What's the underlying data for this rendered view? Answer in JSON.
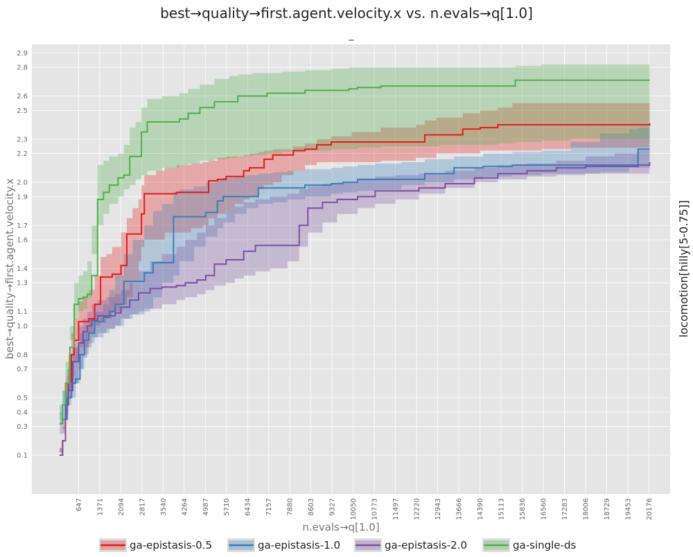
{
  "chart_data": {
    "type": "line",
    "title": "best→quality→first.agent.velocity.x vs. n.evals→q[1.0]",
    "subtitle": "_",
    "facet_label": "locomotion[hilly[5-0.75]]",
    "xlabel": "n.evals→q[1.0]",
    "ylabel": "best→quality→first.agent.velocity.x",
    "xlim": [
      -950,
      20900
    ],
    "ylim": [
      -0.17,
      2.96
    ],
    "x_ticks": [
      647,
      1371,
      2094,
      2817,
      3540,
      4264,
      4987,
      5710,
      6434,
      7157,
      7880,
      8603,
      9327,
      10050,
      10773,
      11497,
      12220,
      12943,
      13666,
      14390,
      15113,
      15836,
      16560,
      17283,
      18006,
      18729,
      19453,
      20176
    ],
    "y_ticks": [
      0.1,
      0.3,
      0.4,
      0.5,
      0.7,
      0.8,
      1.0,
      1.1,
      1.3,
      1.4,
      1.6,
      1.7,
      1.9,
      2.0,
      2.2,
      2.3,
      2.5,
      2.6,
      2.8,
      2.9
    ],
    "grid": true,
    "legend": "bottom",
    "series": [
      {
        "name": "ga-epistasis-0.5",
        "color": "#e41a1c",
        "x": [
          0,
          100,
          200,
          300,
          400,
          500,
          650,
          800,
          1000,
          1200,
          1400,
          1600,
          1800,
          2100,
          2300,
          2500,
          2700,
          2800,
          2900,
          3300,
          3600,
          4000,
          4500,
          4900,
          5100,
          5400,
          5700,
          6000,
          6300,
          6500,
          6800,
          7000,
          7300,
          7600,
          8000,
          8400,
          8800,
          9300,
          10000,
          11000,
          12200,
          12500,
          12900,
          13800,
          14400,
          15000,
          15500,
          16500,
          17500,
          18500,
          19500,
          20200
        ],
        "y": [
          0.1,
          0.2,
          0.45,
          0.6,
          0.8,
          0.9,
          1.03,
          1.03,
          1.05,
          1.15,
          1.34,
          1.34,
          1.36,
          1.42,
          1.64,
          1.64,
          1.64,
          1.78,
          1.92,
          1.92,
          1.92,
          1.93,
          1.93,
          1.93,
          2.01,
          2.02,
          2.04,
          2.04,
          2.08,
          2.1,
          2.1,
          2.16,
          2.19,
          2.19,
          2.22,
          2.23,
          2.26,
          2.28,
          2.28,
          2.28,
          2.28,
          2.33,
          2.33,
          2.37,
          2.38,
          2.4,
          2.4,
          2.4,
          2.4,
          2.4,
          2.4,
          2.41
        ],
        "y_low": [
          0.1,
          0.12,
          0.25,
          0.35,
          0.55,
          0.65,
          0.75,
          0.85,
          0.85,
          0.95,
          1.0,
          1.02,
          1.05,
          1.1,
          1.15,
          1.2,
          1.3,
          1.45,
          1.55,
          1.6,
          1.6,
          1.65,
          1.65,
          1.68,
          1.7,
          1.75,
          1.78,
          1.8,
          1.85,
          1.88,
          1.9,
          1.95,
          1.98,
          2.0,
          2.05,
          2.08,
          2.12,
          2.14,
          2.14,
          2.14,
          2.15,
          2.17,
          2.17,
          2.2,
          2.2,
          2.22,
          2.22,
          2.22,
          2.23,
          2.24,
          2.24,
          2.24
        ],
        "y_high": [
          0.15,
          0.35,
          0.65,
          0.8,
          0.95,
          1.05,
          1.17,
          1.2,
          1.25,
          1.35,
          1.48,
          1.5,
          1.55,
          1.65,
          1.75,
          1.82,
          1.88,
          1.98,
          2.05,
          2.08,
          2.1,
          2.12,
          2.13,
          2.14,
          2.15,
          2.17,
          2.18,
          2.18,
          2.19,
          2.2,
          2.21,
          2.22,
          2.23,
          2.23,
          2.25,
          2.27,
          2.3,
          2.32,
          2.35,
          2.38,
          2.4,
          2.43,
          2.45,
          2.48,
          2.5,
          2.52,
          2.55,
          2.55,
          2.55,
          2.55,
          2.55,
          2.55
        ]
      },
      {
        "name": "ga-epistasis-1.0",
        "color": "#377eb8",
        "x": [
          0,
          100,
          250,
          400,
          550,
          700,
          850,
          1000,
          1200,
          1500,
          1700,
          1900,
          2200,
          2500,
          2900,
          3200,
          3500,
          3900,
          4100,
          4600,
          5000,
          5400,
          5600,
          6000,
          6400,
          6800,
          7300,
          7800,
          8400,
          9300,
          9700,
          10200,
          10800,
          11700,
          12500,
          13500,
          14500,
          15500,
          16500,
          17500,
          18500,
          19500,
          19800,
          20200
        ],
        "y": [
          0.32,
          0.35,
          0.5,
          0.6,
          0.63,
          0.8,
          0.9,
          0.95,
          1.03,
          1.06,
          1.1,
          1.15,
          1.31,
          1.31,
          1.37,
          1.44,
          1.44,
          1.76,
          1.76,
          1.76,
          1.79,
          1.87,
          1.9,
          1.9,
          1.9,
          1.96,
          1.96,
          1.96,
          1.98,
          1.99,
          2.0,
          2.02,
          2.02,
          2.02,
          2.06,
          2.1,
          2.11,
          2.12,
          2.12,
          2.12,
          2.12,
          2.12,
          2.23,
          2.23
        ],
        "y_low": [
          0.2,
          0.25,
          0.35,
          0.45,
          0.5,
          0.6,
          0.7,
          0.8,
          0.88,
          0.92,
          0.95,
          0.98,
          1.0,
          1.05,
          1.08,
          1.12,
          1.2,
          1.3,
          1.35,
          1.45,
          1.55,
          1.62,
          1.68,
          1.72,
          1.78,
          1.82,
          1.85,
          1.86,
          1.88,
          1.9,
          1.92,
          1.93,
          1.94,
          1.95,
          1.98,
          2.0,
          2.02,
          2.04,
          2.05,
          2.06,
          2.06,
          2.07,
          2.1,
          2.1
        ],
        "y_high": [
          0.45,
          0.55,
          0.7,
          0.8,
          0.85,
          0.95,
          1.0,
          1.05,
          1.1,
          1.15,
          1.25,
          1.35,
          1.5,
          1.6,
          1.7,
          1.8,
          1.85,
          1.93,
          1.95,
          1.97,
          2.0,
          2.02,
          2.03,
          2.04,
          2.05,
          2.06,
          2.07,
          2.08,
          2.09,
          2.1,
          2.11,
          2.12,
          2.13,
          2.14,
          2.16,
          2.18,
          2.2,
          2.21,
          2.22,
          2.28,
          2.34,
          2.37,
          2.38,
          2.38
        ]
      },
      {
        "name": "ga-epistasis-2.0",
        "color": "#7b4ea3",
        "x": [
          0,
          100,
          200,
          300,
          450,
          650,
          800,
          950,
          1100,
          1300,
          1600,
          1900,
          2100,
          2400,
          2700,
          3100,
          3500,
          4000,
          4300,
          4700,
          5000,
          5300,
          5700,
          6000,
          6300,
          6700,
          7200,
          7800,
          8200,
          8500,
          9000,
          9500,
          10200,
          10800,
          11500,
          12300,
          13200,
          14200,
          15000,
          16000,
          17000,
          18000,
          19000,
          19800,
          20200
        ],
        "y": [
          0.1,
          0.2,
          0.45,
          0.55,
          0.75,
          0.88,
          0.96,
          1.0,
          1.04,
          1.07,
          1.07,
          1.09,
          1.13,
          1.18,
          1.23,
          1.26,
          1.27,
          1.28,
          1.3,
          1.32,
          1.35,
          1.43,
          1.46,
          1.46,
          1.52,
          1.56,
          1.56,
          1.56,
          1.7,
          1.82,
          1.86,
          1.88,
          1.9,
          1.94,
          1.94,
          1.96,
          1.99,
          2.03,
          2.06,
          2.08,
          2.1,
          2.11,
          2.11,
          2.12,
          2.14
        ],
        "y_low": [
          0.08,
          0.12,
          0.28,
          0.38,
          0.5,
          0.6,
          0.7,
          0.78,
          0.85,
          0.92,
          0.95,
          0.98,
          1.0,
          1.05,
          1.08,
          1.1,
          1.12,
          1.15,
          1.18,
          1.2,
          1.22,
          1.25,
          1.28,
          1.3,
          1.33,
          1.35,
          1.38,
          1.4,
          1.45,
          1.55,
          1.65,
          1.72,
          1.78,
          1.82,
          1.85,
          1.88,
          1.92,
          1.96,
          2.0,
          2.02,
          2.04,
          2.05,
          2.06,
          2.06,
          2.06
        ],
        "y_high": [
          0.15,
          0.3,
          0.6,
          0.7,
          0.85,
          1.0,
          1.05,
          1.1,
          1.15,
          1.18,
          1.2,
          1.22,
          1.25,
          1.3,
          1.38,
          1.45,
          1.5,
          1.55,
          1.6,
          1.65,
          1.7,
          1.75,
          1.8,
          1.83,
          1.86,
          1.88,
          1.9,
          1.92,
          1.95,
          1.97,
          1.99,
          2.0,
          2.02,
          2.04,
          2.05,
          2.06,
          2.08,
          2.1,
          2.12,
          2.13,
          2.15,
          2.18,
          2.2,
          2.22,
          2.22
        ]
      },
      {
        "name": "ga-single-ds",
        "color": "#4daf4a",
        "x": [
          0,
          100,
          200,
          350,
          500,
          650,
          800,
          950,
          1100,
          1300,
          1500,
          1700,
          2000,
          2200,
          2400,
          2600,
          2800,
          3000,
          3500,
          4100,
          4400,
          4800,
          5300,
          5800,
          6100,
          6600,
          7100,
          7600,
          8400,
          9300,
          9900,
          10200,
          11000,
          12000,
          13000,
          14000,
          15000,
          15600,
          16500,
          17500,
          18500,
          19500,
          20200
        ],
        "y": [
          0.32,
          0.45,
          0.6,
          0.85,
          1.15,
          1.19,
          1.2,
          1.22,
          1.35,
          1.88,
          1.93,
          1.98,
          2.03,
          2.05,
          2.18,
          2.18,
          2.35,
          2.42,
          2.42,
          2.44,
          2.48,
          2.52,
          2.56,
          2.56,
          2.6,
          2.6,
          2.62,
          2.62,
          2.64,
          2.64,
          2.65,
          2.66,
          2.67,
          2.67,
          2.67,
          2.67,
          2.67,
          2.71,
          2.71,
          2.71,
          2.71,
          2.71,
          2.71
        ],
        "y_low": [
          0.25,
          0.35,
          0.45,
          0.65,
          0.9,
          1.05,
          1.1,
          1.12,
          1.2,
          1.5,
          1.7,
          1.78,
          1.85,
          1.9,
          1.95,
          1.98,
          2.02,
          2.05,
          2.08,
          2.1,
          2.12,
          2.13,
          2.15,
          2.16,
          2.17,
          2.18,
          2.19,
          2.2,
          2.21,
          2.22,
          2.23,
          2.23,
          2.24,
          2.25,
          2.25,
          2.26,
          2.26,
          2.27,
          2.28,
          2.29,
          2.3,
          2.3,
          2.3
        ],
        "y_high": [
          0.4,
          0.55,
          0.75,
          1.0,
          1.3,
          1.35,
          1.38,
          1.45,
          1.7,
          2.12,
          2.15,
          2.18,
          2.2,
          2.26,
          2.38,
          2.42,
          2.52,
          2.58,
          2.6,
          2.62,
          2.65,
          2.68,
          2.72,
          2.74,
          2.75,
          2.76,
          2.76,
          2.77,
          2.78,
          2.79,
          2.8,
          2.8,
          2.8,
          2.8,
          2.8,
          2.8,
          2.8,
          2.81,
          2.82,
          2.82,
          2.82,
          2.82,
          2.82
        ]
      }
    ]
  }
}
